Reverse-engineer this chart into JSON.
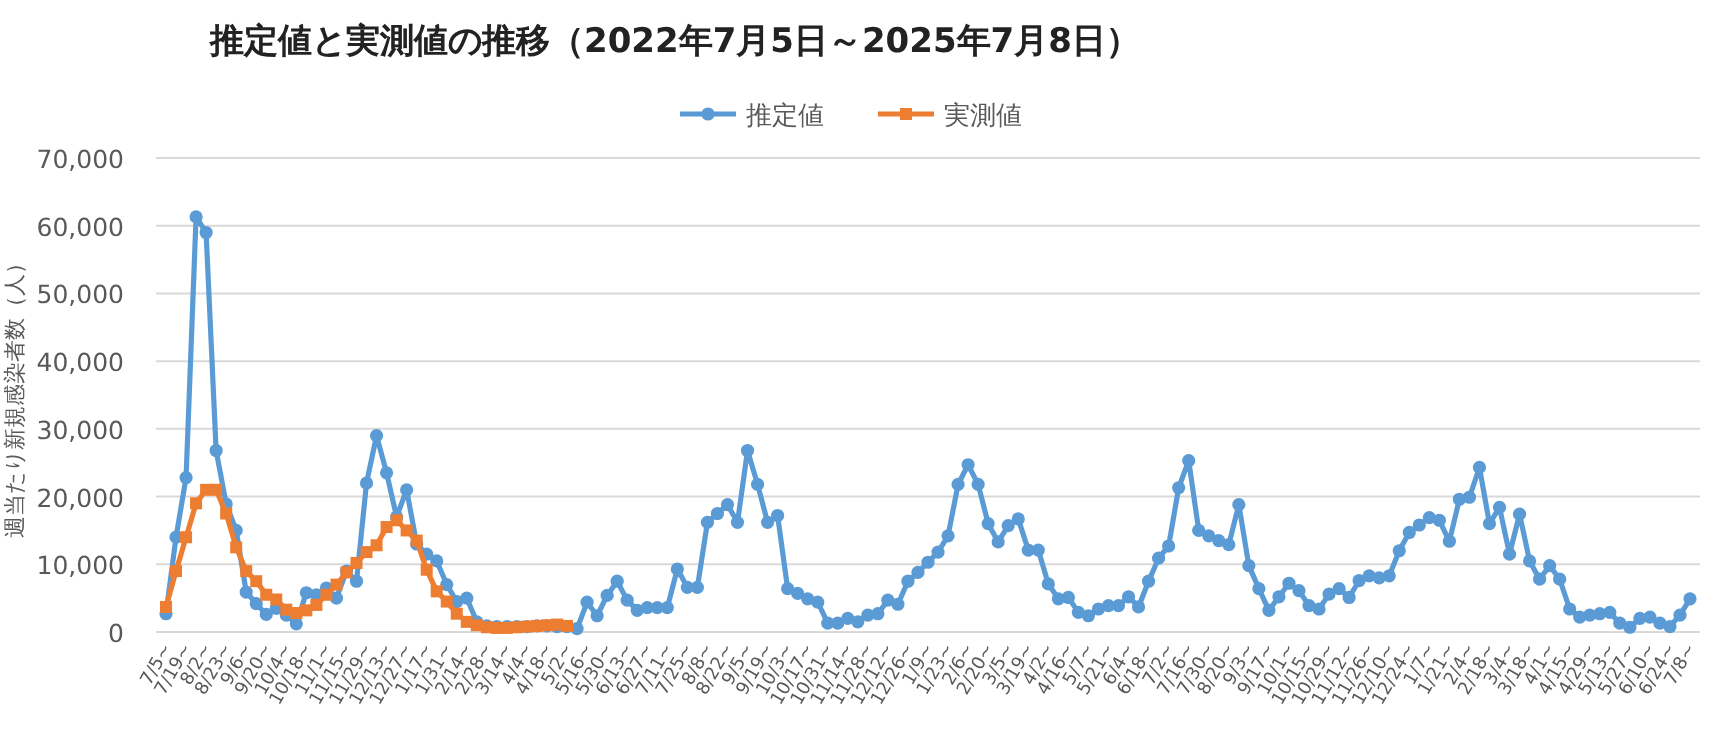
{
  "chart_data": {
    "type": "line",
    "title": "推定値と実測値の推移（2022年7月5日～2025年7月8日）",
    "ylabel": "週当たり新規感染者数（人）",
    "categories": [
      "7/5~",
      null,
      "7/19~",
      null,
      "8/2~",
      null,
      "8/23~",
      null,
      "9/6~",
      null,
      "9/20~",
      null,
      "10/4~",
      null,
      "10/18~",
      null,
      "11/1~",
      null,
      "11/15~",
      null,
      "11/29~",
      null,
      "12/13~",
      null,
      "12/27~",
      null,
      "1/17~",
      null,
      "1/31~",
      null,
      "2/14~",
      null,
      "2/28~",
      null,
      "3/14~",
      null,
      "4/4~",
      null,
      "4/18~",
      null,
      "5/2~",
      null,
      "5/16~",
      null,
      "5/30~",
      null,
      "6/13~",
      null,
      "6/27~",
      null,
      "7/11~",
      null,
      "7/25~",
      null,
      "8/8~",
      null,
      "8/22~",
      null,
      "9/5~",
      null,
      "9/19~",
      null,
      "10/3~",
      null,
      "10/17~",
      null,
      "10/31~",
      null,
      "11/14~",
      null,
      "11/28~",
      null,
      "12/12~",
      null,
      "12/26~",
      null,
      "1/9~",
      null,
      "1/23~",
      null,
      "2/6~",
      null,
      "2/20~",
      null,
      "3/5~",
      null,
      "3/19~",
      null,
      "4/2~",
      null,
      "4/16~",
      null,
      "5/7~",
      null,
      "5/21~",
      null,
      "6/4~",
      null,
      "6/18~",
      null,
      "7/2~",
      null,
      "7/16~",
      null,
      "7/30~",
      null,
      "8/20~",
      null,
      "9/3~",
      null,
      "9/17~",
      null,
      "10/1~",
      null,
      "10/15~",
      null,
      "10/29~",
      null,
      "11/12~",
      null,
      "11/26~",
      null,
      "12/10~",
      null,
      "12/24~",
      null,
      "1/7~",
      null,
      "1/21~",
      null,
      "2/4~",
      null,
      "2/18~",
      null,
      "3/4~",
      null,
      "3/18~",
      null,
      "4/1~",
      null,
      "4/15~",
      null,
      "4/29~",
      null,
      "5/13~",
      null,
      "5/27~",
      null,
      "6/10~",
      null,
      "6/24~",
      null,
      "7/8~"
    ],
    "series": [
      {
        "name": "推定値",
        "color": "#5b9bd5",
        "marker": "circle",
        "values": [
          2700,
          14000,
          22800,
          61300,
          59000,
          26800,
          18900,
          15000,
          5900,
          4200,
          2600,
          3500,
          2500,
          1200,
          5800,
          5500,
          6500,
          5000,
          9000,
          7500,
          22000,
          29000,
          23500,
          17000,
          21000,
          13000,
          11500,
          10500,
          7000,
          4500,
          5000,
          1500,
          900,
          800,
          800,
          800,
          800,
          900,
          900,
          800,
          800,
          500,
          4400,
          2400,
          5400,
          7500,
          4700,
          3200,
          3600,
          3600,
          3600,
          9300,
          6600,
          6600,
          16200,
          17500,
          18800,
          16200,
          26800,
          21800,
          16200,
          17200,
          6400,
          5700,
          4900,
          4400,
          1300,
          1300,
          2000,
          1500,
          2500,
          2700,
          4700,
          4100,
          7500,
          8800,
          10300,
          11800,
          14200,
          21800,
          24700,
          21800,
          16000,
          13300,
          15700,
          16700,
          12100,
          12100,
          7100,
          4900,
          5100,
          2900,
          2400,
          3400,
          3900,
          3900,
          5200,
          3700,
          7500,
          10900,
          12700,
          21300,
          25300,
          15000,
          14200,
          13500,
          12900,
          18800,
          9800,
          6400,
          3200,
          5200,
          7200,
          6100,
          3900,
          3400,
          5600,
          6400,
          5100,
          7600,
          8300,
          8000,
          8300,
          12000,
          14700,
          15800,
          16900,
          16500,
          13400,
          19600,
          19900,
          24300,
          16000,
          18400,
          11500,
          17400,
          10500,
          7800,
          9800,
          7800,
          3400,
          2200,
          2500,
          2700,
          2900,
          1300,
          700,
          2000,
          2200,
          1300,
          800,
          2500,
          4900
        ]
      },
      {
        "name": "実測値",
        "color": "#ed7d31",
        "marker": "square",
        "values": [
          3700,
          9000,
          14000,
          19000,
          21000,
          21000,
          17500,
          12500,
          9000,
          7500,
          5500,
          4800,
          3300,
          2800,
          3200,
          4000,
          5500,
          7000,
          8800,
          10200,
          11800,
          12800,
          15500,
          16500,
          15000,
          13500,
          9200,
          6000,
          4500,
          2700,
          1500,
          1000,
          700,
          600,
          600,
          700,
          800,
          900,
          1000,
          1100,
          900,
          null,
          null,
          null,
          null,
          null,
          null,
          null,
          null,
          null,
          null,
          null,
          null,
          null,
          null,
          null,
          null,
          null,
          null,
          null,
          null,
          null,
          null,
          null,
          null,
          null,
          null,
          null,
          null,
          null,
          null,
          null,
          null,
          null,
          null,
          null,
          null,
          null,
          null,
          null,
          null,
          null,
          null,
          null,
          null,
          null,
          null,
          null,
          null,
          null,
          null,
          null,
          null,
          null,
          null,
          null,
          null,
          null,
          null,
          null,
          null,
          null,
          null,
          null,
          null,
          null,
          null,
          null,
          null,
          null,
          null,
          null,
          null,
          null,
          null,
          null,
          null,
          null,
          null,
          null,
          null,
          null,
          null,
          null,
          null,
          null,
          null,
          null,
          null,
          null,
          null,
          null,
          null,
          null,
          null,
          null,
          null,
          null,
          null,
          null,
          null,
          null,
          null,
          null,
          null,
          null,
          null,
          null,
          null,
          null,
          null,
          null,
          null
        ]
      }
    ],
    "ylim": [
      0,
      70000
    ],
    "yticks": [
      {
        "value": 0,
        "label": "0"
      },
      {
        "value": 10000,
        "label": "10,000"
      },
      {
        "value": 20000,
        "label": "20,000"
      },
      {
        "value": 30000,
        "label": "30,000"
      },
      {
        "value": 40000,
        "label": "40,000"
      },
      {
        "value": 50000,
        "label": "50,000"
      },
      {
        "value": 60000,
        "label": "60,000"
      },
      {
        "value": 70000,
        "label": "70,000"
      }
    ],
    "grid": "y",
    "legend": "top"
  }
}
